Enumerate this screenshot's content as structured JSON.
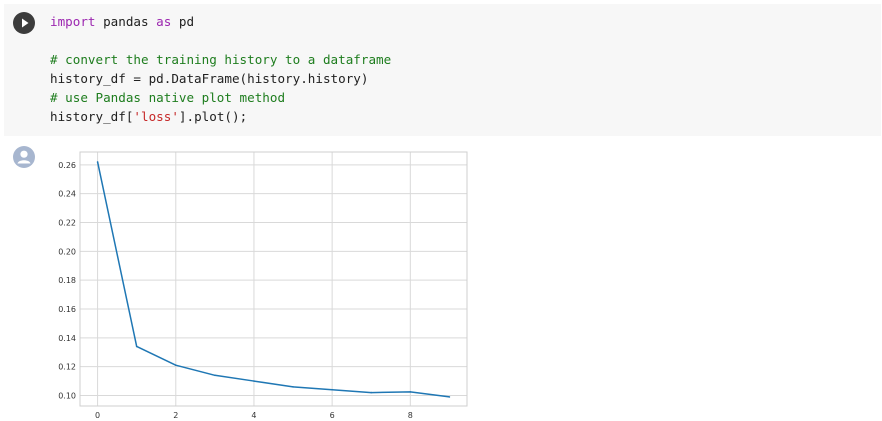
{
  "cell": {
    "code_lines": [
      [
        {
          "t": "import",
          "c": "kw"
        },
        {
          "t": " pandas ",
          "c": ""
        },
        {
          "t": "as",
          "c": "kw"
        },
        {
          "t": " pd",
          "c": ""
        }
      ],
      [],
      [
        {
          "t": "# convert the training history to a dataframe",
          "c": "cm"
        }
      ],
      [
        {
          "t": "history_df = pd.DataFrame(history.history)",
          "c": ""
        }
      ],
      [
        {
          "t": "# use Pandas native plot method",
          "c": "cm"
        }
      ],
      [
        {
          "t": "history_df[",
          "c": ""
        },
        {
          "t": "'loss'",
          "c": "st"
        },
        {
          "t": "].plot();",
          "c": ""
        }
      ]
    ]
  },
  "icons": {
    "run": "play-circle-icon",
    "output": "user-avatar-icon"
  },
  "colors": {
    "line": "#1f77b4",
    "grid": "#d9d9d9",
    "cell_bg": "#f7f7f7"
  },
  "chart_data": {
    "type": "line",
    "x": [
      0,
      1,
      2,
      3,
      4,
      5,
      6,
      7,
      8,
      9
    ],
    "series": [
      {
        "values": [
          0.262,
          0.134,
          0.121,
          0.114,
          0.11,
          0.106,
          0.104,
          0.102,
          0.1025,
          0.099
        ]
      }
    ],
    "xlim": [
      -0.45,
      9.45
    ],
    "ylim": [
      0.0927,
      0.2689
    ],
    "x_ticks": [
      0,
      2,
      4,
      6,
      8
    ],
    "x_tick_labels": [
      "0",
      "2",
      "4",
      "6",
      "8"
    ],
    "y_ticks": [
      0.1,
      0.12,
      0.14,
      0.16,
      0.18,
      0.2,
      0.22,
      0.24,
      0.26
    ],
    "y_tick_labels": [
      "0.10",
      "0.12",
      "0.14",
      "0.16",
      "0.18",
      "0.20",
      "0.22",
      "0.24",
      "0.26"
    ],
    "grid": true,
    "title": "",
    "xlabel": "",
    "ylabel": ""
  }
}
